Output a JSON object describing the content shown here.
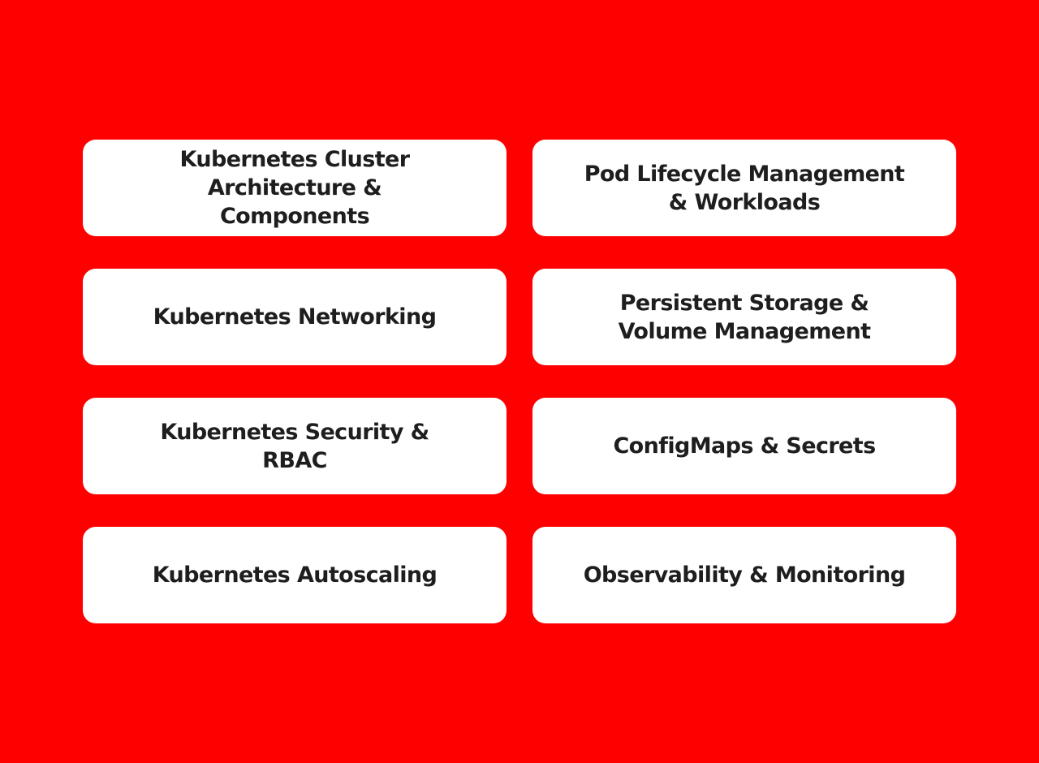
{
  "colors": {
    "background": "#ff0000",
    "card": "#ffffff",
    "text": "#1e1e1e"
  },
  "topics": [
    {
      "label": "Kubernetes Cluster Architecture & Components"
    },
    {
      "label": "Pod Lifecycle Management & Workloads"
    },
    {
      "label": "Kubernetes Networking"
    },
    {
      "label": "Persistent Storage & Volume Management"
    },
    {
      "label": "Kubernetes Security & RBAC"
    },
    {
      "label": "ConfigMaps & Secrets"
    },
    {
      "label": "Kubernetes Autoscaling"
    },
    {
      "label": "Observability & Monitoring"
    }
  ]
}
